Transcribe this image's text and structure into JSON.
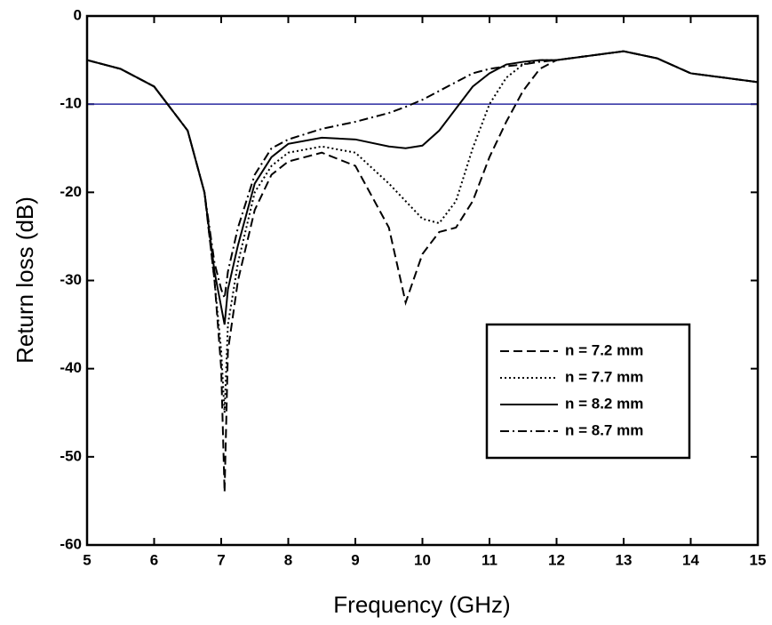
{
  "chart_data": {
    "type": "line",
    "x_label": "Frequency (GHz)",
    "y_label": "Return loss (dB)",
    "x": [
      5,
      5.5,
      6,
      6.5,
      6.75,
      6.9,
      7.0,
      7.05,
      7.1,
      7.25,
      7.5,
      7.75,
      8,
      8.5,
      9,
      9.5,
      9.75,
      10,
      10.25,
      10.5,
      10.75,
      11,
      11.25,
      11.5,
      11.75,
      12,
      12.5,
      13,
      13.5,
      14,
      14.5,
      15
    ],
    "series": [
      {
        "name": "n = 7.2 mm",
        "color": "#000000",
        "dash": "10 5",
        "values": [
          -5,
          -6,
          -8,
          -13,
          -20,
          -30,
          -40,
          -54,
          -38,
          -30,
          -22,
          -18,
          -16.5,
          -15.5,
          -17,
          -24,
          -32.5,
          -27,
          -24.5,
          -24,
          -21,
          -16,
          -12,
          -8.5,
          -6,
          -5,
          -4.5,
          -4,
          -4.8,
          -6.5,
          -7,
          -7.5
        ]
      },
      {
        "name": "n = 7.7 mm",
        "color": "#000000",
        "dash": "2 3",
        "values": [
          -5,
          -6,
          -8,
          -13,
          -20,
          -30,
          -38,
          -45,
          -35,
          -28,
          -20,
          -17,
          -15.5,
          -14.8,
          -15.5,
          -19,
          -21,
          -23,
          -23.5,
          -21,
          -15,
          -10,
          -7,
          -5.5,
          -5,
          -5,
          -4.5,
          -4,
          -4.8,
          -6.5,
          -7,
          -7.5
        ]
      },
      {
        "name": "n = 8.2 mm",
        "color": "#000000",
        "dash": "none",
        "values": [
          -5,
          -6,
          -8,
          -13,
          -20,
          -29,
          -33,
          -35,
          -31,
          -26,
          -19,
          -16,
          -14.5,
          -13.8,
          -14,
          -14.8,
          -15,
          -14.7,
          -13,
          -10.5,
          -8,
          -6.5,
          -5.5,
          -5.2,
          -5,
          -5,
          -4.5,
          -4,
          -4.8,
          -6.5,
          -7,
          -7.5
        ]
      },
      {
        "name": "n = 8.7 mm",
        "color": "#000000",
        "dash": "10 4 2 4",
        "values": [
          -5,
          -6,
          -8,
          -13,
          -20,
          -28,
          -31,
          -32,
          -29,
          -24,
          -18,
          -15,
          -14,
          -12.8,
          -12,
          -11,
          -10.3,
          -9.5,
          -8.5,
          -7.5,
          -6.5,
          -6,
          -5.7,
          -5.5,
          -5.2,
          -5,
          -4.5,
          -4,
          -4.8,
          -6.5,
          -7,
          -7.5
        ]
      }
    ],
    "hline": {
      "value": -10,
      "color": "#2a2aa0"
    },
    "xlim": [
      5,
      15
    ],
    "xticks": [
      5,
      6,
      7,
      8,
      9,
      10,
      11,
      12,
      13,
      14,
      15
    ],
    "ylim": [
      -60,
      0
    ],
    "yticks": [
      0,
      -10,
      -20,
      -30,
      -40,
      -50,
      -60
    ],
    "grid": false,
    "legend": "lower right"
  }
}
